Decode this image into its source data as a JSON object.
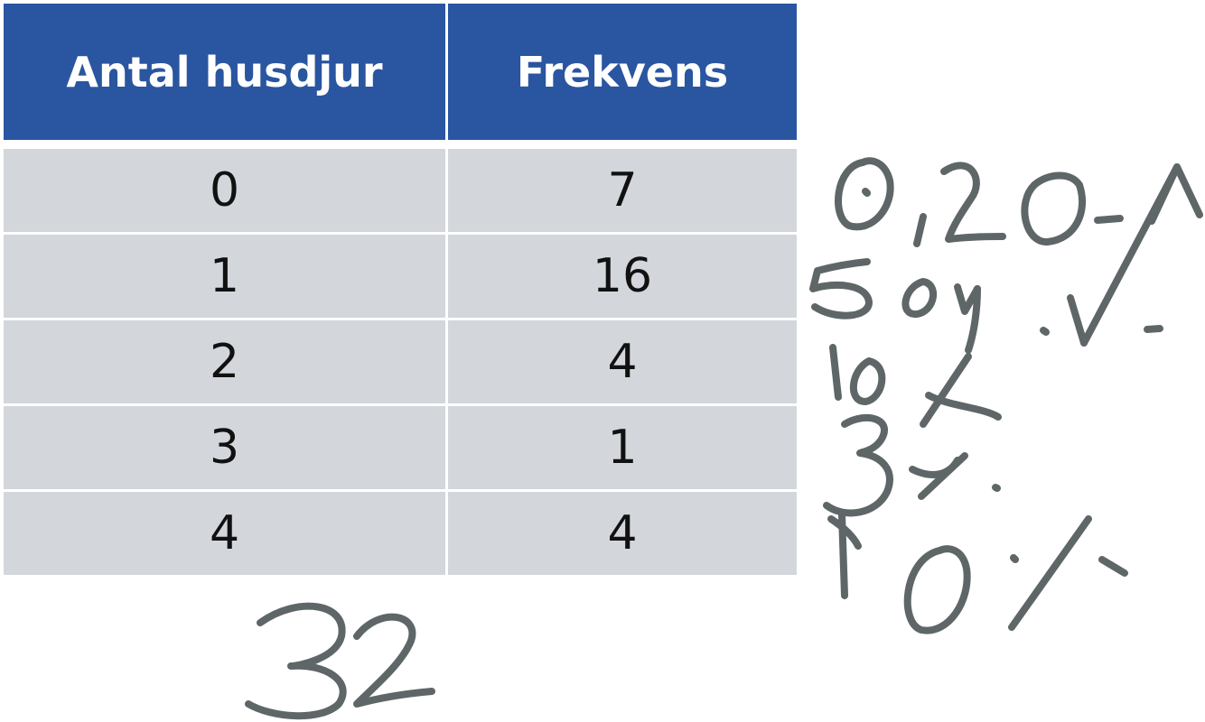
{
  "table": {
    "headers": [
      "Antal husdjur",
      "Frekvens"
    ],
    "rows": [
      [
        "0",
        "7"
      ],
      [
        "1",
        "16"
      ],
      [
        "2",
        "4"
      ],
      [
        "3",
        "1"
      ],
      [
        "4",
        "4"
      ]
    ]
  },
  "annotations": {
    "handwritten_total": "32",
    "handwritten_notes": [
      "0,20",
      "50",
      "10",
      "3",
      "10"
    ]
  },
  "colors": {
    "header_bg": "#2a55a0",
    "header_text": "#ffffff",
    "cell_bg": "#d3d7dc",
    "ink": "#5f6668"
  }
}
